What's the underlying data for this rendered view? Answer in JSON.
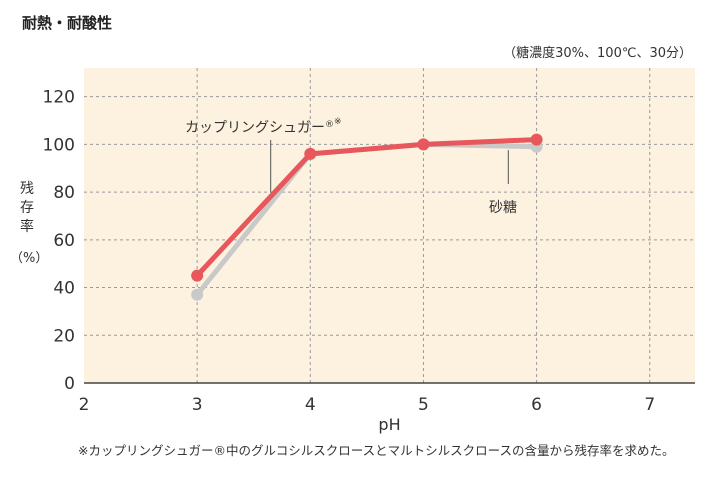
{
  "title": "耐熱・耐酸性",
  "subtitle": "（糖濃度30%、100℃、30分）",
  "footnote": "※カップリングシュガー®中のグルコシルスクロースとマルトシルスクロースの含量から残存率を求めた。",
  "chart_data": {
    "type": "line",
    "xlabel": "pH",
    "ylabel": "残存率",
    "ylabel_chars": [
      "残",
      "存",
      "率"
    ],
    "ylabel_unit": "（%）",
    "xlim": [
      2,
      7.4
    ],
    "ylim": [
      0,
      132
    ],
    "x_ticks": [
      2,
      3,
      4,
      5,
      6,
      7
    ],
    "y_ticks": [
      0,
      20,
      40,
      60,
      80,
      100,
      120
    ],
    "grid": true,
    "x": [
      3,
      4,
      5,
      6
    ],
    "series": [
      {
        "name": "カップリングシュガー®※",
        "values": [
          45,
          96,
          100,
          102
        ],
        "color": "#e8575b"
      },
      {
        "name": "砂糖",
        "values": [
          37,
          96,
          100,
          99
        ],
        "color": "#c9c9c9"
      }
    ],
    "annotations": [
      {
        "series": 0,
        "text": "カップリングシュガー",
        "reg": "®",
        "mark": "※"
      },
      {
        "series": 1,
        "text": "砂糖"
      }
    ]
  },
  "colors": {
    "plot_background": "#fdf1df",
    "grid": "#9a9a9a",
    "axis": "#444444"
  }
}
